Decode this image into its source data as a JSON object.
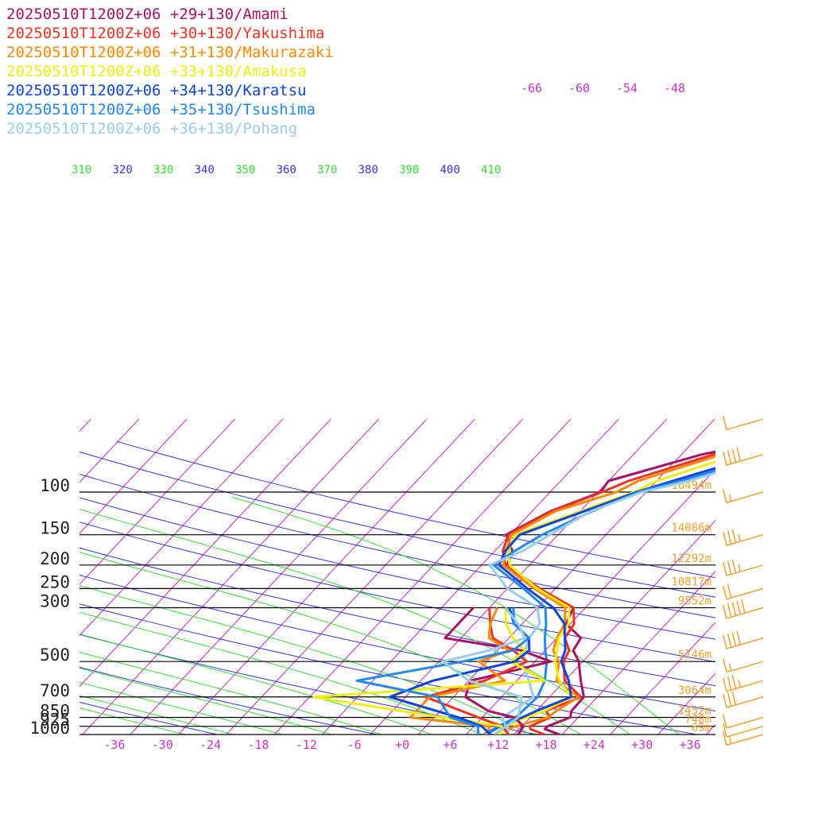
{
  "chart_data": {
    "type": "line",
    "chart_kind": "skew-T log-p sounding",
    "x_axis": {
      "label": "",
      "ticks": [
        "-36",
        "-30",
        "-24",
        "-18",
        "-12",
        "-6",
        "+0",
        "+6",
        "+12",
        "+18",
        "+24",
        "+30",
        "+36"
      ],
      "range": [
        -40,
        40
      ]
    },
    "y_axis": {
      "label": "",
      "scale": "log",
      "ticks": [
        "100",
        "150",
        "200",
        "250",
        "300",
        "500",
        "700",
        "850",
        "925",
        "1000"
      ],
      "range": [
        1000,
        70
      ]
    },
    "isotherm_labels": [
      "-66",
      "-60",
      "-54",
      "-48"
    ],
    "theta_labels": [
      "310",
      "320",
      "330",
      "340",
      "350",
      "360",
      "370",
      "380",
      "390",
      "400",
      "410"
    ],
    "height_labels": [
      {
        "p": 100,
        "text": "16494m"
      },
      {
        "p": 150,
        "text": "14086m"
      },
      {
        "p": 200,
        "text": "12292m"
      },
      {
        "p": 250,
        "text": "10817m"
      },
      {
        "p": 300,
        "text": "9552m"
      },
      {
        "p": 500,
        "text": "5746m"
      },
      {
        "p": 700,
        "text": "3064m"
      },
      {
        "p": 850,
        "text": "1452m"
      },
      {
        "p": 925,
        "text": "748m"
      },
      {
        "p": 1000,
        "text": "69m"
      }
    ],
    "series": [
      {
        "name": "20250510T1200Z+06 +29+130/Amami",
        "color": "#aa1166",
        "values": [
          [
            1000,
            19.7
          ],
          [
            950,
            17.2
          ],
          [
            925,
            17.2
          ],
          [
            850,
            19
          ],
          [
            800,
            18.4
          ],
          [
            700,
            18.3
          ],
          [
            600,
            16
          ],
          [
            500,
            13.5
          ],
          [
            450,
            11.5
          ],
          [
            400,
            11
          ],
          [
            350,
            7.5
          ],
          [
            325,
            7
          ],
          [
            300,
            6.5
          ],
          [
            250,
            0
          ],
          [
            200,
            -6.8
          ],
          [
            175,
            -7.8
          ],
          [
            150,
            -10.5
          ],
          [
            120,
            -7.7
          ],
          [
            100,
            -3.7
          ],
          [
            90,
            -4
          ],
          [
            70,
            4.5
          ],
          [
            60,
            13
          ],
          [
            50,
            20
          ],
          [
            40,
            28
          ]
        ]
      },
      {
        "name": "20250510T1200Z+06 +30+130/Yakushima",
        "color": "#ee3322",
        "values": [
          [
            1000,
            17.8
          ],
          [
            950,
            15.4
          ],
          [
            925,
            15
          ],
          [
            850,
            16.5
          ],
          [
            800,
            15.2
          ],
          [
            700,
            17.9
          ],
          [
            600,
            14
          ],
          [
            500,
            11.6
          ],
          [
            450,
            11
          ],
          [
            400,
            9
          ],
          [
            350,
            8.5
          ],
          [
            300,
            6.5
          ],
          [
            250,
            0
          ],
          [
            200,
            -7
          ],
          [
            175,
            -9
          ],
          [
            150,
            -10.2
          ],
          [
            120,
            -7.5
          ],
          [
            100,
            -3.5
          ],
          [
            90,
            -1.5
          ],
          [
            70,
            6
          ],
          [
            60,
            14
          ],
          [
            50,
            22
          ],
          [
            40,
            30
          ]
        ]
      },
      {
        "name": "20250510T1200Z+06 +31+130/Makurazaki",
        "color": "#ff8800",
        "values": [
          [
            1000,
            13.2
          ],
          [
            950,
            12.6
          ],
          [
            925,
            13.2
          ],
          [
            850,
            16.2
          ],
          [
            800,
            16.5
          ],
          [
            700,
            17.6
          ],
          [
            600,
            13
          ],
          [
            500,
            11
          ],
          [
            450,
            9
          ],
          [
            400,
            8
          ],
          [
            350,
            7.3
          ],
          [
            300,
            5.5
          ],
          [
            250,
            -0.7
          ],
          [
            200,
            -7.3
          ],
          [
            175,
            -8.6
          ],
          [
            150,
            -9.8
          ],
          [
            120,
            -7.1
          ],
          [
            100,
            -1.7
          ],
          [
            90,
            -0.3
          ],
          [
            70,
            7
          ],
          [
            60,
            15
          ],
          [
            50,
            22
          ],
          [
            40,
            30
          ]
        ]
      },
      {
        "name": "20250510T1200Z+06 +33+130/Amakusa",
        "color": "#eeee11",
        "values": [
          [
            1000,
            12.2
          ],
          [
            950,
            12
          ],
          [
            925,
            12
          ],
          [
            850,
            13.5
          ],
          [
            800,
            15
          ],
          [
            700,
            16.7
          ],
          [
            600,
            13.3
          ],
          [
            500,
            10.5
          ],
          [
            450,
            9.5
          ],
          [
            400,
            8.2
          ],
          [
            350,
            7.8
          ],
          [
            300,
            6
          ],
          [
            250,
            -0.3
          ],
          [
            200,
            -6.5
          ],
          [
            175,
            -8.3
          ],
          [
            150,
            -9.3
          ],
          [
            120,
            -4
          ],
          [
            100,
            0.5
          ],
          [
            90,
            2
          ],
          [
            70,
            9
          ],
          [
            60,
            17
          ],
          [
            50,
            24
          ],
          [
            40,
            31
          ]
        ]
      },
      {
        "name": "20250510T1200Z+06 +34+130/Karatsu",
        "color": "#1144dd",
        "values": [
          [
            1000,
            10.5
          ],
          [
            950,
            11
          ],
          [
            925,
            11.2
          ],
          [
            850,
            13
          ],
          [
            800,
            14
          ],
          [
            700,
            16.7
          ],
          [
            600,
            14.5
          ],
          [
            500,
            11.3
          ],
          [
            450,
            10.5
          ],
          [
            400,
            9
          ],
          [
            350,
            7.3
          ],
          [
            300,
            4
          ],
          [
            250,
            -1.5
          ],
          [
            200,
            -7.8
          ],
          [
            175,
            -8.7
          ],
          [
            150,
            -8.8
          ],
          [
            120,
            -3.5
          ],
          [
            100,
            0.8
          ],
          [
            90,
            4
          ],
          [
            70,
            12
          ],
          [
            60,
            19
          ],
          [
            50,
            26
          ],
          [
            40,
            32
          ]
        ]
      },
      {
        "name": "20250510T1200Z+06 +35+130/Tsushima",
        "color": "#2288ee",
        "values": [
          [
            1000,
            10.2
          ],
          [
            950,
            10.8
          ],
          [
            925,
            11
          ],
          [
            850,
            12.2
          ],
          [
            800,
            12.3
          ],
          [
            700,
            12.5
          ],
          [
            600,
            11.5
          ],
          [
            500,
            9.5
          ],
          [
            450,
            8
          ],
          [
            400,
            6.5
          ],
          [
            350,
            5
          ],
          [
            300,
            3
          ],
          [
            250,
            -2
          ],
          [
            200,
            -8.5
          ],
          [
            175,
            -7.5
          ],
          [
            150,
            -6
          ],
          [
            120,
            -2.5
          ],
          [
            100,
            1
          ],
          [
            90,
            5
          ],
          [
            70,
            13
          ],
          [
            60,
            20
          ],
          [
            50,
            27
          ],
          [
            40,
            33
          ]
        ]
      },
      {
        "name": "20250510T1200Z+06 +36+130/Pohang",
        "color": "#99ccee",
        "values": [
          [
            1000,
            13.4
          ],
          [
            950,
            12.5
          ],
          [
            925,
            12
          ],
          [
            850,
            10.5
          ],
          [
            800,
            11
          ],
          [
            700,
            12
          ],
          [
            600,
            9.5
          ],
          [
            500,
            6.5
          ],
          [
            450,
            5.5
          ],
          [
            400,
            4.5
          ],
          [
            350,
            4.2
          ],
          [
            300,
            2
          ],
          [
            250,
            -4
          ],
          [
            200,
            -9
          ],
          [
            175,
            -6.5
          ],
          [
            150,
            -5
          ],
          [
            120,
            -2.7
          ],
          [
            100,
            1.5
          ],
          [
            90,
            6
          ],
          [
            70,
            14
          ],
          [
            60,
            21
          ],
          [
            50,
            28
          ],
          [
            40,
            34
          ]
        ]
      },
      {
        "name": "20250510T1200Z+06 +29+130/Amami",
        "color": "#aa1166",
        "dewpoint": true,
        "values": [
          [
            1000,
            14.5
          ],
          [
            925,
            14.2
          ],
          [
            850,
            12
          ],
          [
            800,
            8
          ],
          [
            700,
            3.5
          ],
          [
            600,
            2.2
          ],
          [
            550,
            6
          ],
          [
            500,
            10
          ],
          [
            450,
            5
          ],
          [
            400,
            -6
          ],
          [
            350,
            -6
          ],
          [
            300,
            -6
          ]
        ]
      },
      {
        "name": "20250510T1200Z+06 +30+130/Yakushima",
        "color": "#ee3322",
        "dewpoint": true,
        "values": [
          [
            1000,
            13.3
          ],
          [
            925,
            11.5
          ],
          [
            850,
            7.5
          ],
          [
            700,
            -1.5
          ],
          [
            600,
            4
          ],
          [
            500,
            7
          ],
          [
            450,
            4
          ],
          [
            400,
            0
          ],
          [
            350,
            -2
          ],
          [
            300,
            -4
          ]
        ]
      },
      {
        "name": "20250510T1200Z+06 +31+130/Makurazaki",
        "color": "#ff8800",
        "dewpoint": true,
        "values": [
          [
            1000,
            10.5
          ],
          [
            925,
            10
          ],
          [
            850,
            -1
          ],
          [
            700,
            -1
          ],
          [
            600,
            6.5
          ],
          [
            500,
            1
          ],
          [
            450,
            3.5
          ],
          [
            400,
            -0.5
          ],
          [
            350,
            -2
          ],
          [
            300,
            -3
          ]
        ]
      },
      {
        "name": "20250510T1200Z+06 +33+130/Amakusa",
        "color": "#eeee11",
        "dewpoint": true,
        "values": [
          [
            1000,
            12
          ],
          [
            925,
            11.5
          ],
          [
            850,
            3
          ],
          [
            700,
            -15.5
          ],
          [
            600,
            11.5
          ],
          [
            500,
            5
          ],
          [
            450,
            5.5
          ],
          [
            400,
            2.5
          ],
          [
            350,
            0
          ],
          [
            300,
            -2
          ]
        ]
      },
      {
        "name": "20250510T1200Z+06 +34+130/Karatsu",
        "color": "#1144dd",
        "dewpoint": true,
        "values": [
          [
            1000,
            11
          ],
          [
            925,
            9
          ],
          [
            850,
            5
          ],
          [
            700,
            -6
          ],
          [
            600,
            -2.5
          ],
          [
            500,
            5.5
          ],
          [
            450,
            6
          ],
          [
            400,
            4.5
          ],
          [
            350,
            1
          ],
          [
            300,
            -1.5
          ]
        ]
      },
      {
        "name": "20250510T1200Z+06 +35+130/Tsushima",
        "color": "#2288ee",
        "dewpoint": true,
        "values": [
          [
            1000,
            9.5
          ],
          [
            925,
            8.5
          ],
          [
            850,
            4
          ],
          [
            700,
            0
          ],
          [
            600,
            -12
          ],
          [
            500,
            -1
          ],
          [
            450,
            4
          ],
          [
            400,
            4.5
          ],
          [
            350,
            1
          ],
          [
            300,
            -1
          ]
        ]
      },
      {
        "name": "20250510T1200Z+06 +36+130/Pohang",
        "color": "#99ccee",
        "dewpoint": true,
        "values": [
          [
            1000,
            11.5
          ],
          [
            925,
            12
          ],
          [
            850,
            12.5
          ],
          [
            700,
            10.5
          ],
          [
            600,
            2
          ],
          [
            500,
            -3.5
          ],
          [
            450,
            1
          ],
          [
            400,
            4
          ],
          [
            350,
            1.5
          ],
          [
            300,
            -2
          ]
        ]
      }
    ],
    "wind_barbs": [
      {
        "p": 1000,
        "speed_kt": 15
      },
      {
        "p": 925,
        "speed_kt": 10
      },
      {
        "p": 850,
        "speed_kt": 10
      },
      {
        "p": 700,
        "speed_kt": 30
      },
      {
        "p": 600,
        "speed_kt": 35
      },
      {
        "p": 500,
        "speed_kt": 15
      },
      {
        "p": 400,
        "speed_kt": 40
      },
      {
        "p": 300,
        "speed_kt": 50
      },
      {
        "p": 250,
        "speed_kt": 20
      },
      {
        "p": 200,
        "speed_kt": 35
      },
      {
        "p": 150,
        "speed_kt": 35
      },
      {
        "p": 100,
        "speed_kt": 15
      },
      {
        "p": 70,
        "speed_kt": 40
      },
      {
        "p": 50,
        "speed_kt": 10
      }
    ],
    "colors": {
      "isotherm": "#cc22cc",
      "dry_adiabat": "#3333dd",
      "moist_adiabat": "#33dd33",
      "isobar": "#000000",
      "height": "#f0a030",
      "barb": "#f0a030"
    }
  }
}
